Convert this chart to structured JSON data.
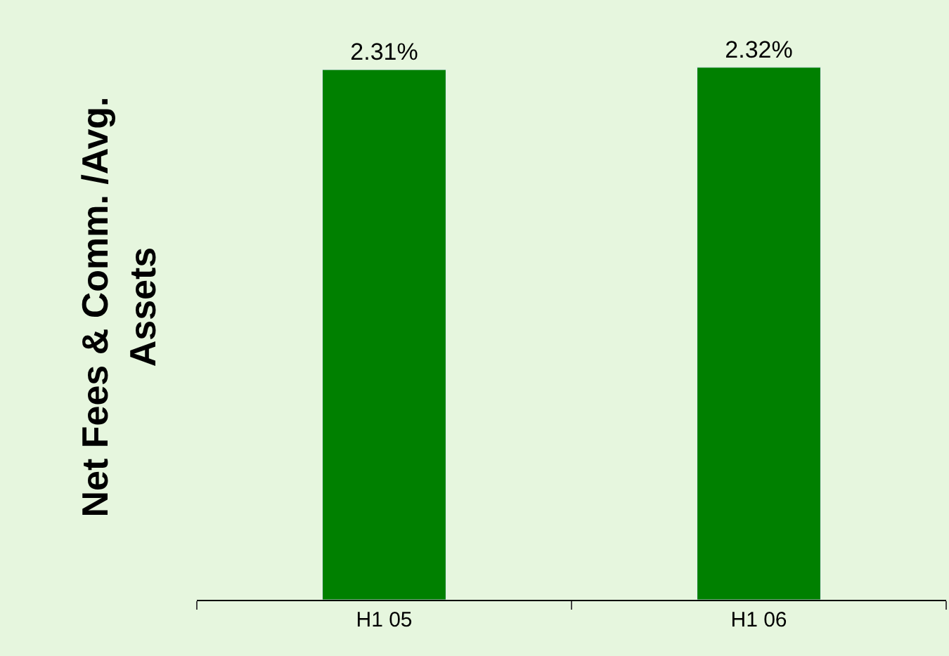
{
  "chart_data": {
    "type": "bar",
    "ylabel": "Net Fees & Comm. /Avg. Assets",
    "categories": [
      "H1 05",
      "H1 06"
    ],
    "values": [
      2.31,
      2.32
    ],
    "value_labels": [
      "2.31%",
      "2.32%"
    ],
    "color": "#008000",
    "grid": false,
    "legend": false
  }
}
